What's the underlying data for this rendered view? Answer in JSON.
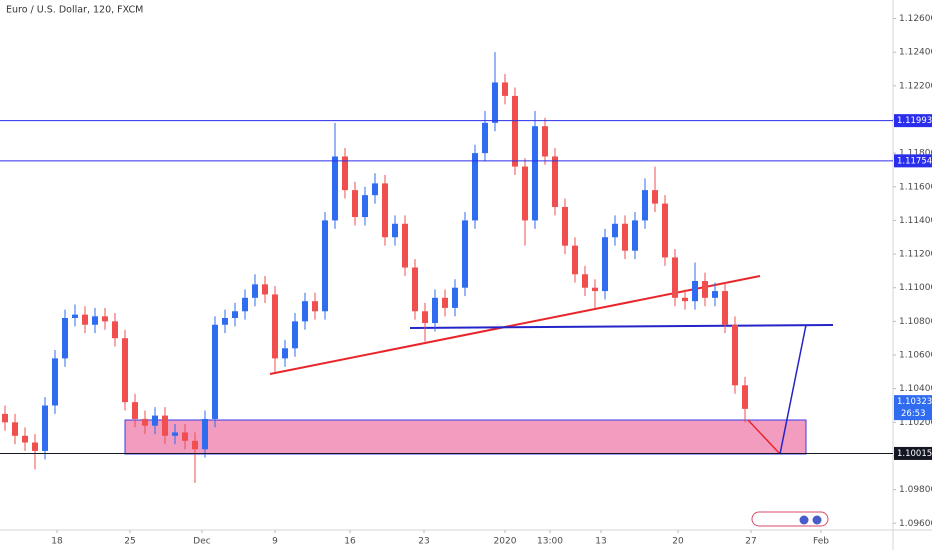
{
  "chart_data": {
    "type": "candlestick",
    "title": "Euro / U.S. Dollar, 120, FXCM",
    "up_color": "#2f6cf0",
    "down_color": "#ef4f4f",
    "x": [
      0.5,
      1.5,
      2.5,
      3.5,
      4.5,
      5.5,
      6.5,
      7.5,
      8.5,
      9.5,
      10.5,
      11.5,
      12.5,
      13.5,
      14.5,
      15.5,
      16.5,
      17.5,
      18.5,
      19.5,
      20.5,
      21.5,
      22.5,
      23.5,
      24.5,
      25.5,
      26.5,
      27.5,
      28.5,
      29.5,
      30.5,
      31.5,
      32.5,
      33.5,
      34.5,
      35.5,
      36.5,
      37.5,
      38.5,
      39.5,
      40.5,
      41.5,
      42.5,
      43.5,
      44.5,
      45.5,
      46.5,
      47.5,
      48.5,
      49.5,
      50.5,
      51.5,
      52.5,
      53.5,
      54.5,
      55.5,
      56.5,
      57.5,
      58.5,
      59.5,
      60.5,
      61.5,
      62.5,
      63.5,
      64.5,
      65.5,
      66.5,
      67.5,
      68.5,
      69.5,
      70.5,
      71.5,
      72.5,
      73.5,
      74.5
    ],
    "open": [
      1.1025,
      1.102,
      1.1012,
      1.1008,
      1.1003,
      1.103,
      1.1058,
      1.1082,
      1.1084,
      1.1078,
      1.1083,
      1.108,
      1.107,
      1.1032,
      1.1022,
      1.1018,
      1.1024,
      1.1012,
      1.1014,
      1.1009,
      1.1004,
      1.1022,
      1.1078,
      1.1082,
      1.1086,
      1.1094,
      1.1102,
      1.1096,
      1.1058,
      1.1064,
      1.108,
      1.1092,
      1.1086,
      1.114,
      1.1178,
      1.1158,
      1.1142,
      1.1155,
      1.1162,
      1.113,
      1.1138,
      1.1112,
      1.1086,
      1.1079,
      1.1094,
      1.1088,
      1.11,
      1.114,
      1.118,
      1.1198,
      1.1222,
      1.1214,
      1.1172,
      1.114,
      1.1196,
      1.1178,
      1.1148,
      1.1125,
      1.1108,
      1.11,
      1.1098,
      1.113,
      1.1138,
      1.1122,
      1.114,
      1.1158,
      1.115,
      1.1118,
      1.1094,
      1.1092,
      1.1104,
      1.1094,
      1.1098,
      1.1078,
      1.1042
    ],
    "high": [
      1.103,
      1.1025,
      1.1017,
      1.1013,
      1.1035,
      1.1063,
      1.1087,
      1.109,
      1.1089,
      1.1088,
      1.1088,
      1.1085,
      1.1075,
      1.1037,
      1.1027,
      1.1029,
      1.1029,
      1.1019,
      1.1019,
      1.1014,
      1.1027,
      1.1083,
      1.1087,
      1.1091,
      1.1099,
      1.1108,
      1.1107,
      1.1101,
      1.1069,
      1.1085,
      1.1097,
      1.1097,
      1.1145,
      1.1198,
      1.1183,
      1.1163,
      1.116,
      1.1168,
      1.1167,
      1.1143,
      1.1143,
      1.1117,
      1.1091,
      1.1099,
      1.1099,
      1.1105,
      1.1145,
      1.1185,
      1.1205,
      1.124,
      1.1227,
      1.1219,
      1.1177,
      1.1205,
      1.1201,
      1.1183,
      1.1153,
      1.113,
      1.1113,
      1.1105,
      1.1135,
      1.1143,
      1.1143,
      1.1145,
      1.1165,
      1.1172,
      1.1155,
      1.1123,
      1.1099,
      1.1115,
      1.1109,
      1.1103,
      1.1103,
      1.1083,
      1.1047
    ],
    "low": [
      1.1015,
      1.1007,
      1.1003,
      1.0992,
      1.0998,
      1.1025,
      1.1053,
      1.1077,
      1.1073,
      1.1073,
      1.1075,
      1.1065,
      1.1027,
      1.1017,
      1.1013,
      1.1013,
      1.1007,
      1.1007,
      1.1004,
      1.0984,
      1.0999,
      1.1017,
      1.1073,
      1.1077,
      1.1081,
      1.1089,
      1.1091,
      1.105,
      1.1053,
      1.1059,
      1.1075,
      1.1081,
      1.1081,
      1.1135,
      1.1153,
      1.1137,
      1.1137,
      1.115,
      1.1125,
      1.1125,
      1.1107,
      1.1081,
      1.1068,
      1.1074,
      1.1083,
      1.1083,
      1.1095,
      1.1135,
      1.1175,
      1.1193,
      1.1209,
      1.1167,
      1.1125,
      1.1135,
      1.1173,
      1.1143,
      1.112,
      1.1103,
      1.1095,
      1.1088,
      1.1093,
      1.1125,
      1.1117,
      1.1117,
      1.1135,
      1.1145,
      1.1113,
      1.1089,
      1.1087,
      1.1087,
      1.1089,
      1.1089,
      1.1073,
      1.1037,
      1.102
    ],
    "close": [
      1.102,
      1.1012,
      1.1008,
      1.1003,
      1.103,
      1.1058,
      1.1082,
      1.1084,
      1.1078,
      1.1083,
      1.108,
      1.107,
      1.1032,
      1.1022,
      1.1018,
      1.1024,
      1.1012,
      1.1014,
      1.1009,
      1.1004,
      1.1022,
      1.1078,
      1.1082,
      1.1086,
      1.1094,
      1.1102,
      1.1096,
      1.1058,
      1.1064,
      1.108,
      1.1092,
      1.1086,
      1.114,
      1.1178,
      1.1158,
      1.1142,
      1.1155,
      1.1162,
      1.113,
      1.1138,
      1.1112,
      1.1086,
      1.1079,
      1.1094,
      1.1088,
      1.11,
      1.114,
      1.118,
      1.1198,
      1.1222,
      1.1214,
      1.1172,
      1.114,
      1.1196,
      1.1178,
      1.1148,
      1.1125,
      1.1108,
      1.11,
      1.1098,
      1.113,
      1.1138,
      1.1122,
      1.114,
      1.1158,
      1.115,
      1.1118,
      1.1094,
      1.1092,
      1.1104,
      1.1094,
      1.1098,
      1.1078,
      1.1042,
      1.1028
    ],
    "xlim": [
      0,
      89.3
    ],
    "xticks": [
      {
        "value": 5.7,
        "label": "18"
      },
      {
        "value": 13.0,
        "label": "25"
      },
      {
        "value": 20.2,
        "label": "Dec"
      },
      {
        "value": 27.5,
        "label": "9"
      },
      {
        "value": 35.0,
        "label": "16"
      },
      {
        "value": 42.4,
        "label": "23"
      },
      {
        "value": 50.5,
        "label": "2020"
      },
      {
        "value": 55.0,
        "label": "13:00"
      },
      {
        "value": 60.1,
        "label": "13"
      },
      {
        "value": 67.8,
        "label": "20"
      },
      {
        "value": 75.1,
        "label": "27"
      },
      {
        "value": 82.1,
        "label": "Feb"
      }
    ],
    "ylim": [
      1.0956,
      1.1271
    ],
    "yticks": [
      {
        "value": 1.126,
        "label": "1.12600"
      },
      {
        "value": 1.124,
        "label": "1.12400"
      },
      {
        "value": 1.122,
        "label": "1.12200"
      },
      {
        "value": 1.12,
        "label": "1.12000"
      },
      {
        "value": 1.118,
        "label": "1.11800"
      },
      {
        "value": 1.116,
        "label": "1.11600"
      },
      {
        "value": 1.114,
        "label": "1.11400"
      },
      {
        "value": 1.112,
        "label": "1.11200"
      },
      {
        "value": 1.11,
        "label": "1.11000"
      },
      {
        "value": 1.108,
        "label": "1.10800"
      },
      {
        "value": 1.106,
        "label": "1.10600"
      },
      {
        "value": 1.104,
        "label": "1.10400"
      },
      {
        "value": 1.102,
        "label": "1.10200"
      },
      {
        "value": 1.1,
        "label": "1.10000"
      },
      {
        "value": 1.098,
        "label": "1.09800"
      },
      {
        "value": 1.096,
        "label": "1.09600"
      }
    ],
    "price_lines": [
      {
        "value": 1.11993,
        "color": "#2a2eec"
      },
      {
        "value": 1.11754,
        "color": "#2a2eec"
      },
      {
        "value": 1.10015,
        "color": "#131722"
      }
    ],
    "last_price": {
      "value": 1.10323,
      "countdown": "26:53",
      "color": "#2f6cf0"
    }
  }
}
